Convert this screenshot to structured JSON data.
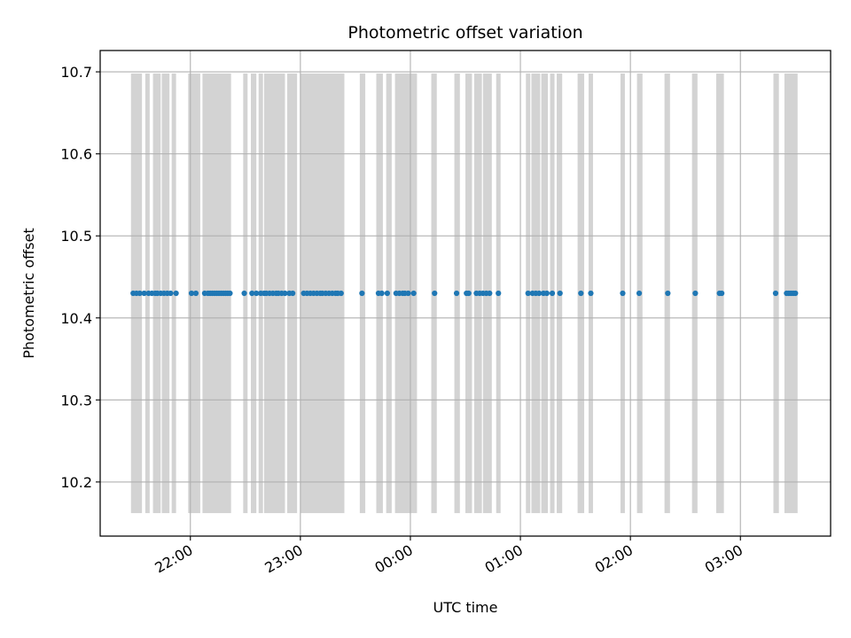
{
  "chart_data": {
    "type": "scatter",
    "title": "Photometric offset variation",
    "xlabel": "UTC time",
    "ylabel": "Photometric offset",
    "grid": true,
    "x_unit": "hours relative to 00:00 UTC",
    "xlim": [
      -2.82,
      3.82
    ],
    "ylim": [
      10.134,
      10.726
    ],
    "x_tick_values": [
      -2,
      -1,
      0,
      1,
      2,
      3
    ],
    "x_tick_labels": [
      "22:00",
      "23:00",
      "00:00",
      "01:00",
      "02:00",
      "03:00"
    ],
    "y_tick_values": [
      10.2,
      10.3,
      10.4,
      10.5,
      10.6,
      10.7
    ],
    "y_tick_labels": [
      "10.2",
      "10.3",
      "10.4",
      "10.5",
      "10.6",
      "10.7"
    ],
    "point_color": "#1f77b4",
    "band_color": "#d3d3d3",
    "band_ylim": [
      10.162,
      10.698
    ],
    "bands": [
      [
        -2.54,
        -2.44
      ],
      [
        -2.41,
        -2.37
      ],
      [
        -2.34,
        -2.27
      ],
      [
        -2.26,
        -2.19
      ],
      [
        -2.17,
        -2.13
      ],
      [
        -2.02,
        -1.91
      ],
      [
        -1.89,
        -1.63
      ],
      [
        -1.52,
        -1.48
      ],
      [
        -1.45,
        -1.4
      ],
      [
        -1.38,
        -1.34
      ],
      [
        -1.33,
        -1.14
      ],
      [
        -1.12,
        -1.03
      ],
      [
        -1.0,
        -0.6
      ],
      [
        -0.46,
        -0.41
      ],
      [
        -0.31,
        -0.25
      ],
      [
        -0.22,
        -0.17
      ],
      [
        -0.14,
        0.06
      ],
      [
        0.19,
        0.24
      ],
      [
        0.4,
        0.45
      ],
      [
        0.5,
        0.56
      ],
      [
        0.58,
        0.65
      ],
      [
        0.66,
        0.74
      ],
      [
        0.78,
        0.82
      ],
      [
        1.05,
        1.09
      ],
      [
        1.1,
        1.18
      ],
      [
        1.19,
        1.25
      ],
      [
        1.27,
        1.31
      ],
      [
        1.33,
        1.38
      ],
      [
        1.52,
        1.58
      ],
      [
        1.62,
        1.66
      ],
      [
        1.91,
        1.95
      ],
      [
        2.06,
        2.11
      ],
      [
        2.31,
        2.36
      ],
      [
        2.56,
        2.61
      ],
      [
        2.78,
        2.85
      ],
      [
        3.3,
        3.35
      ],
      [
        3.4,
        3.52
      ]
    ],
    "offset_value": 10.43,
    "x": [
      -2.52,
      -2.49,
      -2.46,
      -2.42,
      -2.38,
      -2.35,
      -2.32,
      -2.3,
      -2.27,
      -2.24,
      -2.21,
      -2.18,
      -2.13,
      -1.99,
      -1.95,
      -1.87,
      -1.84,
      -1.82,
      -1.8,
      -1.78,
      -1.76,
      -1.74,
      -1.72,
      -1.7,
      -1.68,
      -1.66,
      -1.64,
      -1.51,
      -1.44,
      -1.4,
      -1.36,
      -1.33,
      -1.31,
      -1.28,
      -1.25,
      -1.22,
      -1.2,
      -1.17,
      -1.14,
      -1.1,
      -1.07,
      -0.97,
      -0.94,
      -0.91,
      -0.88,
      -0.85,
      -0.82,
      -0.8,
      -0.77,
      -0.74,
      -0.71,
      -0.68,
      -0.66,
      -0.63,
      -0.44,
      -0.29,
      -0.26,
      -0.21,
      -0.13,
      -0.1,
      -0.07,
      -0.05,
      -0.02,
      0.03,
      0.22,
      0.42,
      0.51,
      0.53,
      0.6,
      0.63,
      0.66,
      0.69,
      0.72,
      0.8,
      1.07,
      1.11,
      1.14,
      1.17,
      1.21,
      1.24,
      1.29,
      1.36,
      1.55,
      1.64,
      1.93,
      2.08,
      2.34,
      2.59,
      2.81,
      2.83,
      3.32,
      3.42,
      3.44,
      3.46,
      3.48,
      3.5
    ],
    "y_note": "all points at offset_value"
  }
}
